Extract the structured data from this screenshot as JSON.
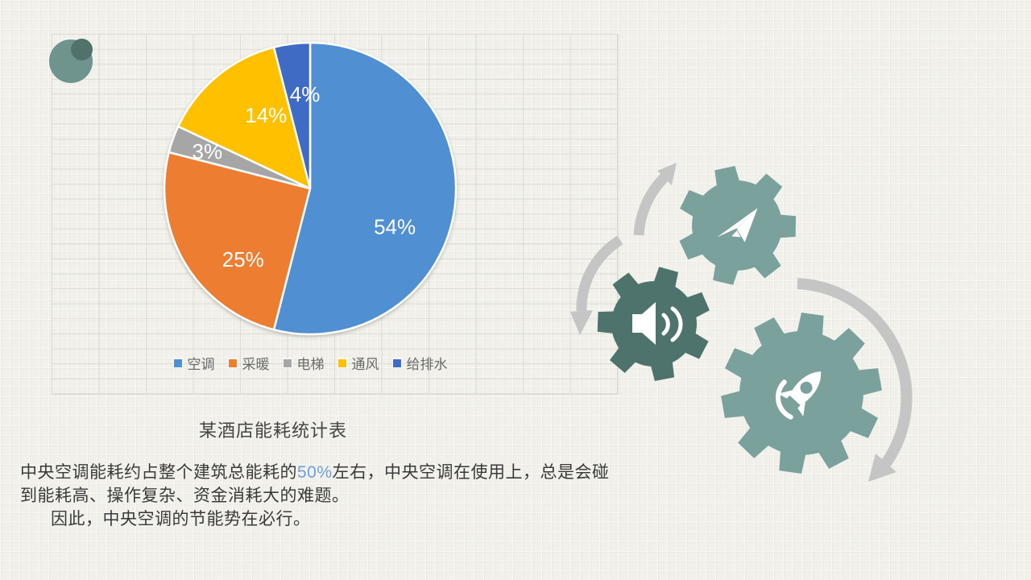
{
  "slide": {
    "background_color": "#f1f0ea"
  },
  "logo": {
    "large_color": "#6F948E",
    "small_color": "#50726A"
  },
  "chart_data": {
    "type": "pie",
    "title": "某酒店能耗统计表",
    "categories": [
      "空调",
      "采暖",
      "电梯",
      "通风",
      "给排水"
    ],
    "values": [
      54,
      25,
      3,
      14,
      4
    ],
    "labels": [
      "54%",
      "25%",
      "3%",
      "14%",
      "4%"
    ],
    "colors": [
      "#5090D2",
      "#ED7D31",
      "#A6A6A6",
      "#FFC000",
      "#3F6BC4"
    ],
    "legend_position": "bottom",
    "start_angle_deg": 0,
    "direction": "clockwise",
    "label_color": "#FFFFFF",
    "legend_text_color": "#6b6b6b"
  },
  "body_text": {
    "line1_prefix": "中央空调能耗约占整个建筑总能耗的",
    "line1_highlight": "50%",
    "line1_suffix": "左右，中央空调在使用上，总是会碰",
    "line2": "到能耗高、操作复杂、资金消耗大的难题。",
    "line3": "因此，中央空调的节能势在必行。",
    "highlight_color": "#6FA0D8",
    "text_color": "#3A3A3A"
  },
  "decoration": {
    "arrow_color": "#C5C5C5",
    "gears": [
      {
        "name": "paper-plane-gear",
        "icon": "paper-plane-icon",
        "color": "#7BA19C"
      },
      {
        "name": "speaker-gear",
        "icon": "speaker-icon",
        "color": "#4D736C"
      },
      {
        "name": "rocket-gear",
        "icon": "rocket-icon",
        "color": "#7BA19C"
      }
    ]
  },
  "spreadsheet": {
    "grid_line_color": "#CBCAC4"
  }
}
